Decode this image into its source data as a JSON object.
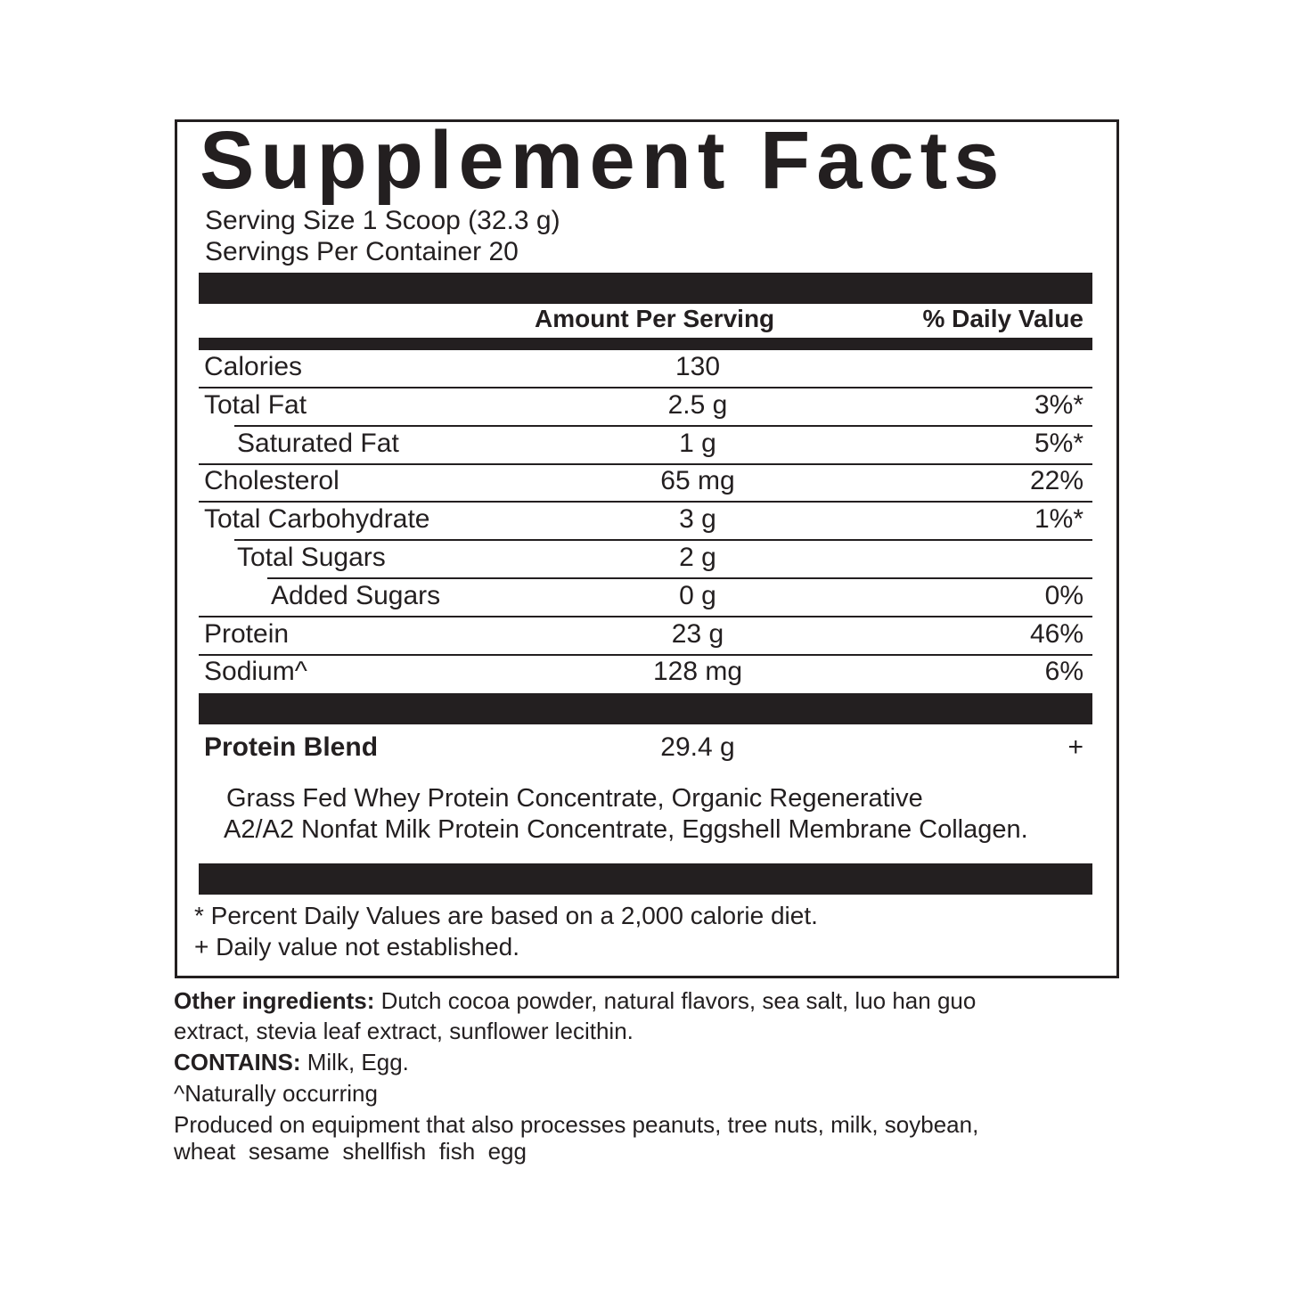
{
  "title": "Supplement Facts",
  "serving_size": "Serving Size 1 Scoop (32.3 g)",
  "servings_per_container": "Servings Per Container 20",
  "header": {
    "amount": "Amount Per Serving",
    "daily_value": "% Daily Value"
  },
  "rows": [
    {
      "name": "Calories",
      "amount": "130",
      "dv": "",
      "indent": 0
    },
    {
      "name": "Total Fat",
      "amount": "2.5 g",
      "dv": "3%*",
      "indent": 0
    },
    {
      "name": "Saturated Fat",
      "amount": "1 g",
      "dv": "5%*",
      "indent": 1
    },
    {
      "name": "Cholesterol",
      "amount": "65 mg",
      "dv": "22%",
      "indent": 0
    },
    {
      "name": "Total Carbohydrate",
      "amount": "3 g",
      "dv": "1%*",
      "indent": 0
    },
    {
      "name": "Total Sugars",
      "amount": "2 g",
      "dv": "",
      "indent": 1
    },
    {
      "name": "Added Sugars",
      "amount": "0 g",
      "dv": "0%",
      "indent": 2
    },
    {
      "name": "Protein",
      "amount": "23 g",
      "dv": "46%",
      "indent": 0
    },
    {
      "name": "Sodium^",
      "amount": "128 mg",
      "dv": "6%",
      "indent": 0
    }
  ],
  "blend": {
    "name": "Protein Blend",
    "amount": "29.4 g",
    "dv": "+",
    "ingredients_line1": "Grass Fed Whey Protein Concentrate, Organic Regenerative",
    "ingredients_line2": "A2/A2 Nonfat Milk Protein Concentrate, Eggshell Membrane Collagen."
  },
  "footnotes": [
    "* Percent Daily Values are based on a 2,000 calorie diet.",
    "+ Daily value not established."
  ],
  "other_ingredients": {
    "label": "Other ingredients:",
    "line1": " Dutch cocoa powder, natural flavors, sea salt, luo han guo",
    "line2": "extract, stevia leaf extract, sunflower lecithin."
  },
  "contains": {
    "label": "CONTAINS:",
    "text": " Milk, Egg."
  },
  "naturally_occurring": "^Naturally occurring",
  "allergen_line1": "Produced on equipment that also processes peanuts, tree nuts, milk, soybean,",
  "allergen_line2": "wheat  sesame  shellfish  fish  egg",
  "colors": {
    "ink": "#231f20",
    "background": "#ffffff"
  }
}
